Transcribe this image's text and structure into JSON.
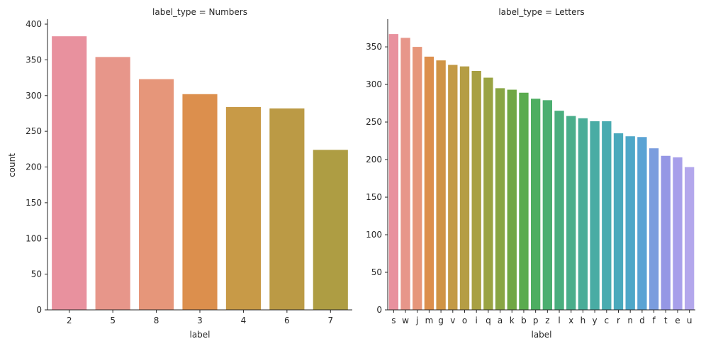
{
  "chart_data": [
    {
      "type": "bar",
      "title": "label_type = Numbers",
      "xlabel": "label",
      "ylabel": "count",
      "ylim": [
        0,
        405
      ],
      "yticks": [
        0,
        50,
        100,
        150,
        200,
        250,
        300,
        350,
        400
      ],
      "grid": false,
      "categories": [
        "2",
        "5",
        "8",
        "3",
        "4",
        "6",
        "7"
      ],
      "values": [
        383,
        354,
        323,
        302,
        284,
        282,
        224
      ],
      "colors": [
        "#e8919e",
        "#e7968a",
        "#e6967a",
        "#dc8f4d",
        "#c89a47",
        "#bb9a45",
        "#ae9d43"
      ]
    },
    {
      "type": "bar",
      "title": "label_type = Letters",
      "xlabel": "label",
      "ylabel": "",
      "ylim": [
        0,
        385
      ],
      "yticks": [
        0,
        50,
        100,
        150,
        200,
        250,
        300,
        350
      ],
      "grid": false,
      "categories": [
        "s",
        "w",
        "j",
        "m",
        "g",
        "v",
        "o",
        "i",
        "q",
        "a",
        "k",
        "b",
        "p",
        "z",
        "l",
        "x",
        "h",
        "y",
        "c",
        "r",
        "n",
        "d",
        "f",
        "t",
        "e",
        "u"
      ],
      "values": [
        367,
        362,
        350,
        337,
        332,
        326,
        324,
        318,
        309,
        295,
        293,
        289,
        281,
        279,
        265,
        258,
        255,
        251,
        251,
        235,
        231,
        230,
        215,
        205,
        203,
        190
      ],
      "colors": [
        "#e8919e",
        "#e7968a",
        "#e6967a",
        "#dc8f4d",
        "#d09445",
        "#c39a45",
        "#b59d44",
        "#a8a043",
        "#9aa343",
        "#88a544",
        "#70a745",
        "#5aab4f",
        "#4dae61",
        "#4bae70",
        "#4aae7e",
        "#4aae8b",
        "#4aad98",
        "#49aca4",
        "#49abb0",
        "#4aa9bc",
        "#4ea7c8",
        "#5aa3d4",
        "#7a9dde",
        "#9597e5",
        "#a79fea",
        "#b3a7ec"
      ]
    }
  ]
}
